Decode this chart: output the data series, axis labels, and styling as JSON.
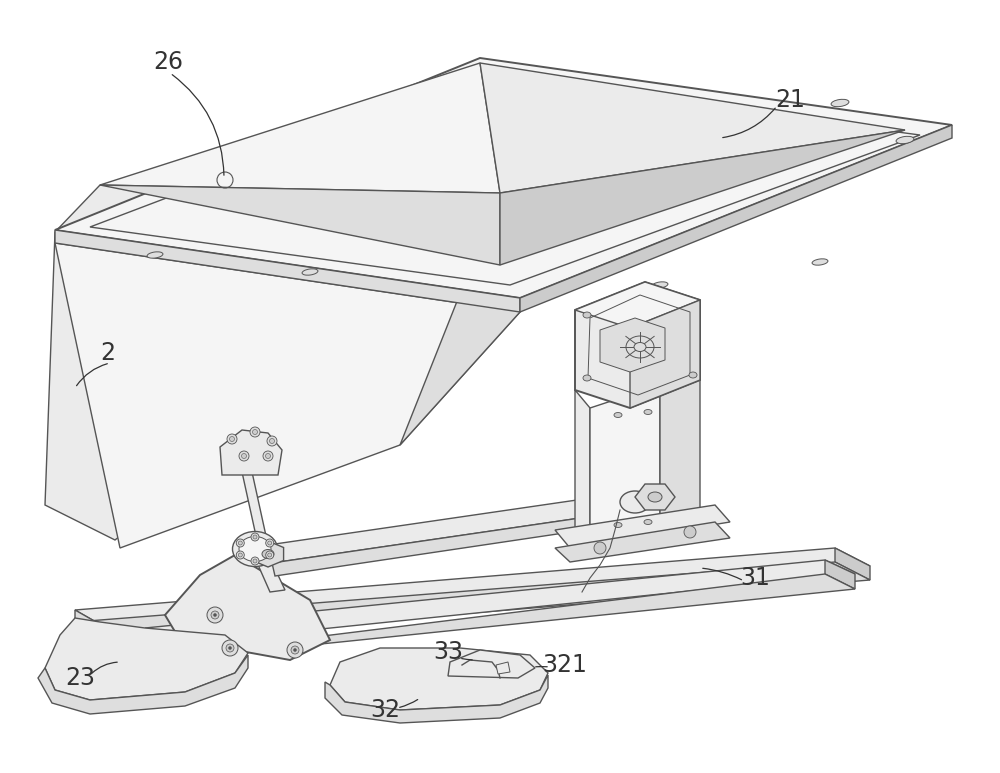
{
  "bg_color": "#ffffff",
  "line_color": "#555555",
  "face_white": "#f5f5f5",
  "face_light": "#ebebeb",
  "face_mid": "#dedede",
  "face_dark": "#cccccc",
  "label_fontsize": 17,
  "figsize": [
    10.0,
    7.73
  ],
  "dpi": 100
}
